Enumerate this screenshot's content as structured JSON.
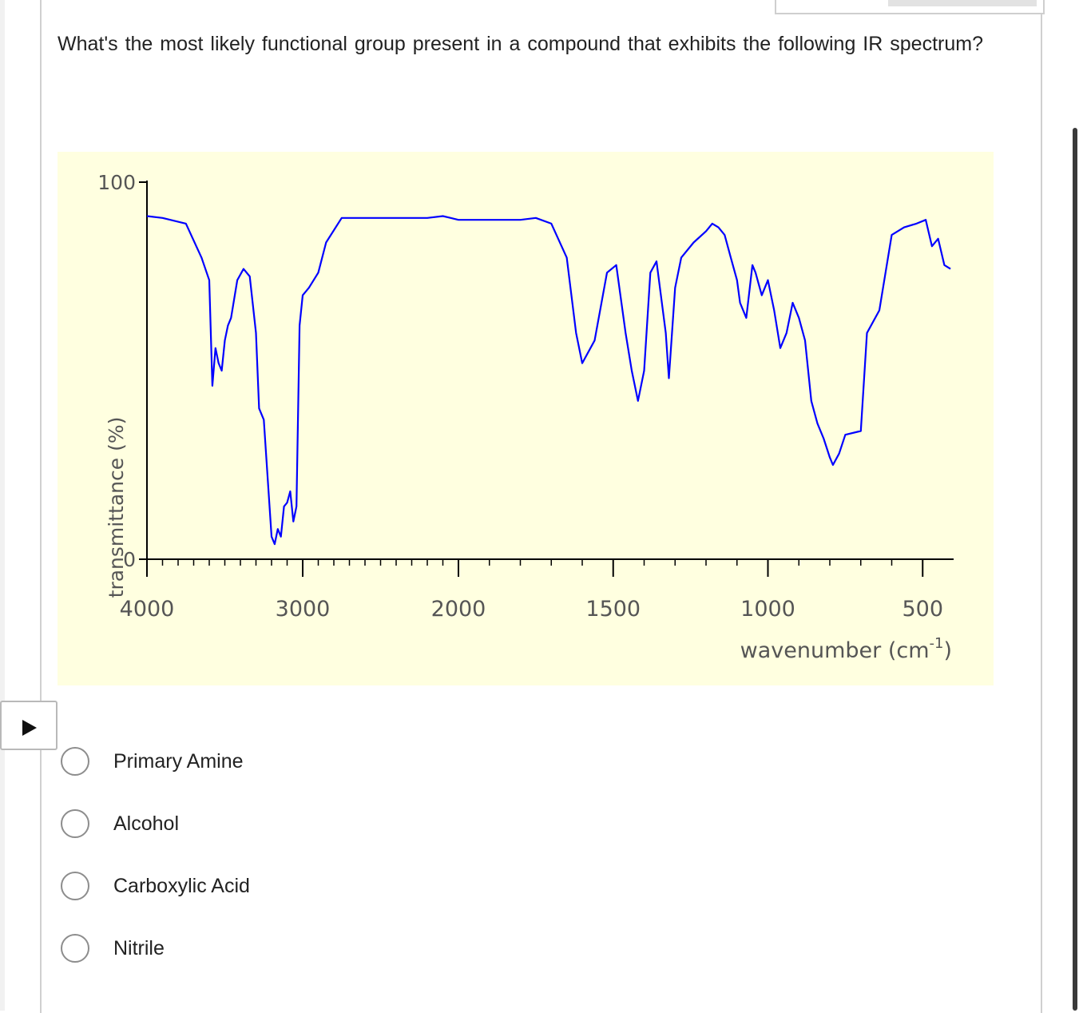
{
  "question": {
    "text": "What's the most likely functional group present in a compound that exhibits the following IR spectrum?"
  },
  "colors": {
    "chart_background": "#ffffe0",
    "spectrum_line": "#0000ff",
    "axis": "#000000"
  },
  "icons": {
    "expand": "play-triangle-icon"
  },
  "chart_data": {
    "type": "line",
    "title": "",
    "xlabel": "wavenumber (cm-1)",
    "xlabel_base": "wavenumber (cm",
    "xlabel_exp": "-1",
    "xlabel_close": ")",
    "ylabel": "transmittance (%)",
    "xlim": [
      4000,
      400
    ],
    "ylim": [
      0,
      100
    ],
    "x_ticks": [
      4000,
      3000,
      2000,
      1500,
      1000,
      500
    ],
    "y_ticks": [
      0,
      100
    ],
    "grid": false,
    "legend": "none",
    "series": [
      {
        "name": "",
        "points": [
          [
            4000,
            91
          ],
          [
            3900,
            90.5
          ],
          [
            3750,
            89
          ],
          [
            3650,
            80
          ],
          [
            3600,
            74
          ],
          [
            3580,
            46
          ],
          [
            3560,
            56
          ],
          [
            3540,
            52
          ],
          [
            3520,
            50
          ],
          [
            3500,
            58
          ],
          [
            3480,
            62
          ],
          [
            3460,
            64
          ],
          [
            3420,
            74
          ],
          [
            3380,
            77
          ],
          [
            3340,
            75
          ],
          [
            3300,
            60
          ],
          [
            3280,
            40
          ],
          [
            3250,
            37
          ],
          [
            3200,
            6
          ],
          [
            3180,
            4
          ],
          [
            3160,
            8
          ],
          [
            3140,
            6
          ],
          [
            3120,
            14
          ],
          [
            3100,
            15
          ],
          [
            3080,
            18
          ],
          [
            3060,
            10
          ],
          [
            3040,
            14
          ],
          [
            3020,
            62
          ],
          [
            3000,
            70
          ],
          [
            2960,
            72
          ],
          [
            2900,
            76
          ],
          [
            2850,
            84
          ],
          [
            2750,
            90.5
          ],
          [
            2600,
            90.5
          ],
          [
            2400,
            90.5
          ],
          [
            2200,
            90.5
          ],
          [
            2100,
            91
          ],
          [
            2050,
            90.5
          ],
          [
            2000,
            90
          ],
          [
            1900,
            90
          ],
          [
            1800,
            90
          ],
          [
            1750,
            90.5
          ],
          [
            1700,
            89
          ],
          [
            1650,
            80
          ],
          [
            1620,
            60
          ],
          [
            1600,
            52
          ],
          [
            1560,
            58
          ],
          [
            1520,
            76
          ],
          [
            1490,
            78
          ],
          [
            1460,
            60
          ],
          [
            1440,
            50
          ],
          [
            1420,
            42
          ],
          [
            1400,
            50
          ],
          [
            1380,
            76
          ],
          [
            1360,
            79
          ],
          [
            1330,
            60
          ],
          [
            1320,
            48
          ],
          [
            1300,
            72
          ],
          [
            1280,
            80
          ],
          [
            1240,
            84
          ],
          [
            1200,
            87
          ],
          [
            1180,
            89
          ],
          [
            1160,
            88
          ],
          [
            1140,
            86
          ],
          [
            1120,
            80
          ],
          [
            1100,
            74
          ],
          [
            1090,
            68
          ],
          [
            1070,
            64
          ],
          [
            1050,
            78
          ],
          [
            1040,
            76
          ],
          [
            1020,
            70
          ],
          [
            1000,
            74
          ],
          [
            980,
            66
          ],
          [
            960,
            56
          ],
          [
            940,
            60
          ],
          [
            920,
            68
          ],
          [
            900,
            64
          ],
          [
            880,
            58
          ],
          [
            860,
            42
          ],
          [
            840,
            36
          ],
          [
            820,
            32
          ],
          [
            800,
            27
          ],
          [
            790,
            25
          ],
          [
            770,
            28
          ],
          [
            750,
            33
          ],
          [
            700,
            34
          ],
          [
            680,
            60
          ],
          [
            640,
            66
          ],
          [
            600,
            86
          ],
          [
            560,
            88
          ],
          [
            520,
            89
          ],
          [
            490,
            90
          ],
          [
            470,
            83
          ],
          [
            450,
            85
          ],
          [
            430,
            78
          ],
          [
            410,
            77
          ]
        ]
      }
    ]
  },
  "options": [
    {
      "label": "Primary Amine"
    },
    {
      "label": "Alcohol"
    },
    {
      "label": "Carboxylic Acid"
    },
    {
      "label": "Nitrile"
    }
  ]
}
